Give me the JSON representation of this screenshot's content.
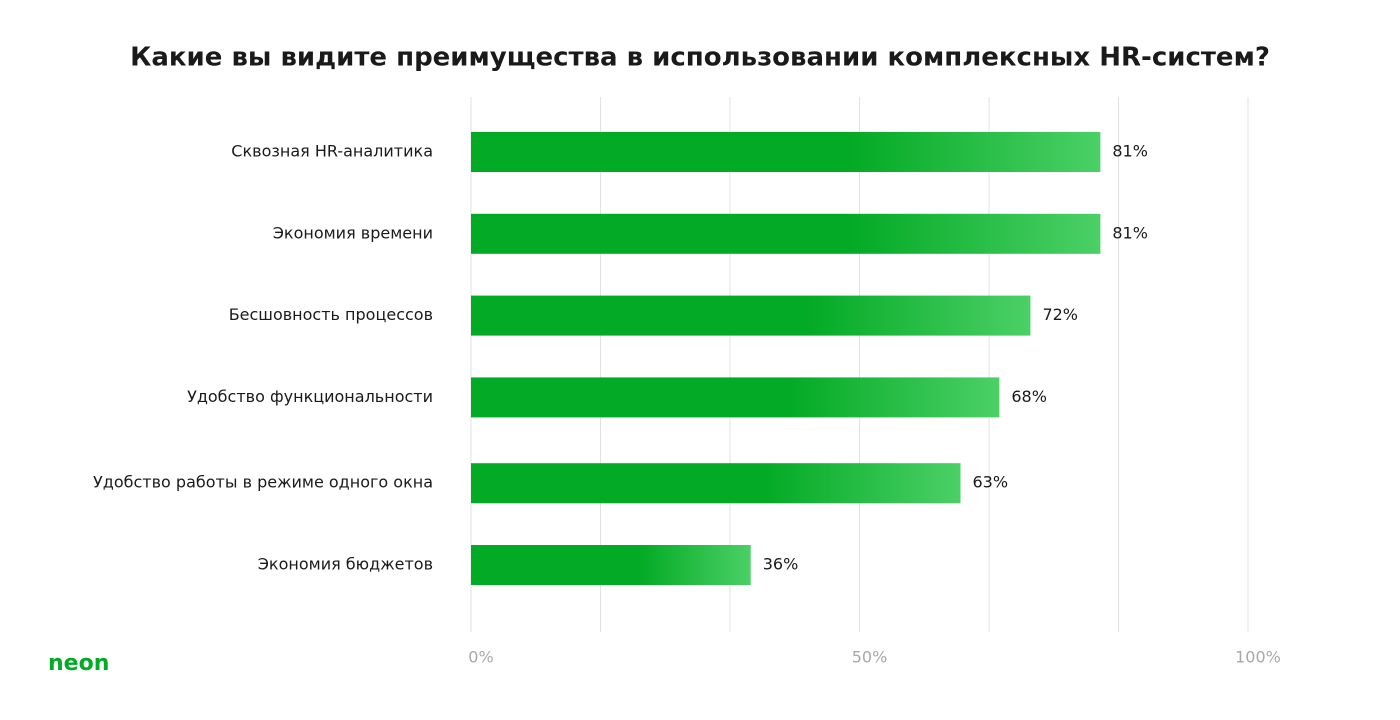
{
  "chart_data": {
    "type": "hbar",
    "title": "Какие вы видите преимущества в использовании комплексных HR-систем?",
    "categories": [
      "Сквозная HR-аналитика",
      "Экономия времени",
      "Бесшовность процессов",
      "Удобство функциональности",
      "Удобство работы в режиме одного окна",
      "Экономия бюджетов"
    ],
    "values": [
      81,
      81,
      72,
      68,
      63,
      36
    ],
    "value_labels": [
      "81%",
      "81%",
      "72%",
      "68%",
      "63%",
      "36%"
    ],
    "color": "#03aa25",
    "gradient_end": "#4bd066",
    "xlim": [
      0,
      100
    ],
    "xticks": [
      {
        "value": 0,
        "label": "0%"
      },
      {
        "value": 16.67,
        "label": null
      },
      {
        "value": 33.33,
        "label": null
      },
      {
        "value": 50,
        "label": "50%"
      },
      {
        "value": 66.67,
        "label": null
      },
      {
        "value": 83.33,
        "label": null
      },
      {
        "value": 100,
        "label": "100%"
      }
    ],
    "grid": true
  },
  "logo": "neon"
}
